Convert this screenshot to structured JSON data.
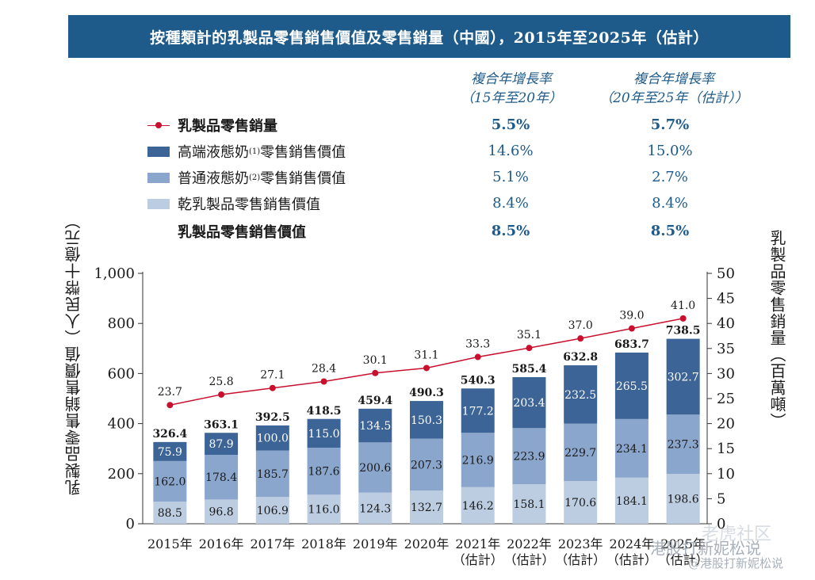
{
  "title": "按種類計的乳製品零售銷售價值及零售銷量（中國），2015年至2025年（估計）",
  "cagr_headers": [
    {
      "line1": "複合年增長率",
      "line2": "（15年至20年）"
    },
    {
      "line1": "複合年增長率",
      "line2": "（20年至25年（估計））"
    }
  ],
  "legend": [
    {
      "label": "乳製品零售銷量",
      "cagr1": "5.5%",
      "cagr2": "5.7%"
    },
    {
      "label": "高端液態奶",
      "sup": "(1)",
      "suffix": "零售銷售價值",
      "cagr1": "14.6%",
      "cagr2": "15.0%"
    },
    {
      "label": "普通液態奶",
      "sup": "(2)",
      "suffix": "零售銷售價值",
      "cagr1": "5.1%",
      "cagr2": "2.7%"
    },
    {
      "label": "乾乳製品零售銷售價值",
      "cagr1": "8.4%",
      "cagr2": "8.4%"
    },
    {
      "label": "乳製品零售銷售價值",
      "cagr1": "8.5%",
      "cagr2": "8.5%"
    }
  ],
  "colors": {
    "premium_liquid": "#3c6496",
    "regular_liquid": "#8aa6cd",
    "dry": "#bccde2",
    "volume_line": "#c8102e",
    "title_bar": "#1f5b8a"
  },
  "watermark": {
    "line1": "老虎社区",
    "line2": "港股打新妮松说",
    "line3": "@港股打新妮松说"
  },
  "chart_data": {
    "type": "bar",
    "stacked": true,
    "categories": [
      "2015年",
      "2016年",
      "2017年",
      "2018年",
      "2019年",
      "2020年",
      "2021年",
      "2022年",
      "2023年",
      "2024年",
      "2025年"
    ],
    "category_notes": [
      "",
      "",
      "",
      "",
      "",
      "",
      "（估計）",
      "（估計）",
      "（估計）",
      "（估計）",
      "（估計）"
    ],
    "ylabel": "乳製品零售銷售價值（人民幣十億元）",
    "y2label": "乳製品零售銷量（百萬噸）",
    "ylim": [
      0,
      1000
    ],
    "y2lim": [
      0,
      50
    ],
    "yticks": [
      0,
      200,
      400,
      600,
      800,
      1000
    ],
    "yticklabels": [
      "0",
      "200",
      "400",
      "600",
      "800",
      "1,000"
    ],
    "y2ticks": [
      0,
      5,
      10,
      15,
      20,
      25,
      30,
      35,
      40,
      45,
      50
    ],
    "series": [
      {
        "name": "乾乳製品零售銷售價值",
        "values": [
          88.5,
          96.8,
          106.9,
          116.0,
          124.3,
          132.7,
          146.2,
          158.1,
          170.6,
          184.1,
          198.6
        ]
      },
      {
        "name": "普通液態奶零售銷售價值",
        "values": [
          162.0,
          178.4,
          185.7,
          187.6,
          200.6,
          207.3,
          216.9,
          223.9,
          229.7,
          234.1,
          237.3
        ]
      },
      {
        "name": "高端液態奶零售銷售價值",
        "values": [
          75.9,
          87.9,
          100.0,
          115.0,
          134.5,
          150.3,
          177.2,
          203.4,
          232.5,
          265.5,
          302.7
        ]
      }
    ],
    "totals": [
      326.4,
      363.1,
      392.5,
      418.5,
      459.4,
      490.3,
      540.3,
      585.4,
      632.8,
      683.7,
      738.5
    ],
    "totals_labels": [
      "326.4",
      "363.1",
      "392.5",
      "418.5",
      "459.4",
      "490.3",
      "540.3",
      "585.4",
      "632.8",
      "683.7",
      "738.5"
    ],
    "line_series": {
      "name": "乳製品零售銷量",
      "values": [
        23.7,
        25.8,
        27.1,
        28.4,
        30.1,
        31.1,
        33.3,
        35.1,
        37.0,
        39.0,
        41.0
      ]
    }
  }
}
